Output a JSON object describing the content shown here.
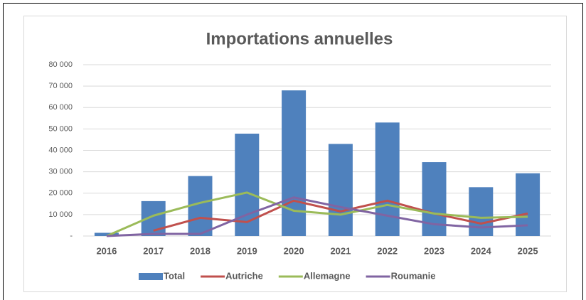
{
  "chart_data": {
    "type": "bar",
    "title": "Importations annuelles",
    "categories": [
      "2016",
      "2017",
      "2018",
      "2019",
      "2020",
      "2021",
      "2022",
      "2023",
      "2024",
      "2025"
    ],
    "series": [
      {
        "name": "Total",
        "type": "bar",
        "color": "#4f81bd",
        "values": [
          1500,
          16300,
          28000,
          47800,
          68000,
          43000,
          53000,
          34500,
          22800,
          29300
        ]
      },
      {
        "name": "Autriche",
        "type": "line",
        "color": "#c0504d",
        "values": [
          null,
          2500,
          8500,
          6500,
          16500,
          11500,
          16500,
          10500,
          5800,
          10500
        ]
      },
      {
        "name": "Allemagne",
        "type": "line",
        "color": "#9bbb59",
        "values": [
          0,
          9500,
          15500,
          20300,
          11800,
          10000,
          14500,
          10500,
          8500,
          9000
        ]
      },
      {
        "name": "Roumanie",
        "type": "line",
        "color": "#8064a2",
        "values": [
          0,
          1000,
          1000,
          10000,
          18000,
          13500,
          9500,
          5500,
          4000,
          5000
        ]
      }
    ],
    "ylim": [
      0,
      80000
    ],
    "yticks": [
      {
        "value": 0,
        "label": "-"
      },
      {
        "value": 10000,
        "label": "10 000"
      },
      {
        "value": 20000,
        "label": "20 000"
      },
      {
        "value": 30000,
        "label": "30 000"
      },
      {
        "value": 40000,
        "label": "40 000"
      },
      {
        "value": 50000,
        "label": "50 000"
      },
      {
        "value": 60000,
        "label": "60 000"
      },
      {
        "value": 70000,
        "label": "70 000"
      },
      {
        "value": 80000,
        "label": "80 000"
      }
    ],
    "grid": true,
    "legend": "bottom"
  }
}
